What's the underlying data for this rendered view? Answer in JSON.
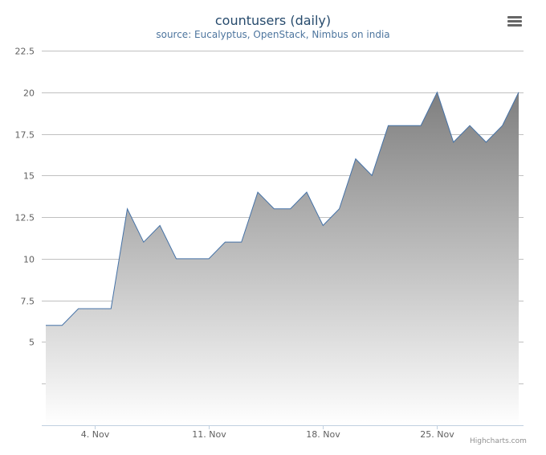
{
  "title": "countusers (daily)",
  "subtitle": "source: Eucalyptus, OpenStack, Nimbus on india",
  "menu": {
    "icon": "hamburger-menu-icon"
  },
  "credits": "Highcharts.com",
  "colors": {
    "line": "#4572a7",
    "area_top": "#7f7f7f",
    "area_bottom": "#ffffff",
    "grid": "#c0c0c0",
    "text": "#606060"
  },
  "chart_data": {
    "type": "area",
    "title": "countusers (daily)",
    "subtitle": "source: Eucalyptus, OpenStack, Nimbus on india",
    "x": [
      "2013-11-01",
      "2013-11-02",
      "2013-11-03",
      "2013-11-04",
      "2013-11-05",
      "2013-11-06",
      "2013-11-07",
      "2013-11-08",
      "2013-11-09",
      "2013-11-10",
      "2013-11-11",
      "2013-11-12",
      "2013-11-13",
      "2013-11-14",
      "2013-11-15",
      "2013-11-16",
      "2013-11-17",
      "2013-11-18",
      "2013-11-19",
      "2013-11-20",
      "2013-11-21",
      "2013-11-22",
      "2013-11-23",
      "2013-11-24",
      "2013-11-25",
      "2013-11-26",
      "2013-11-27",
      "2013-11-28",
      "2013-11-29",
      "2013-11-30"
    ],
    "series": [
      {
        "values": [
          6,
          6,
          7,
          7,
          7,
          13,
          11,
          12,
          10,
          10,
          10,
          11,
          11,
          14,
          13,
          13,
          14,
          12,
          13,
          16,
          15,
          18,
          18,
          18,
          20,
          17,
          18,
          17,
          18,
          20
        ]
      }
    ],
    "ylim": [
      0,
      22.5
    ],
    "y_ticks": [
      2.5,
      5,
      7.5,
      10,
      12.5,
      15,
      17.5,
      20,
      22.5
    ],
    "y_tick_labels": [
      "",
      "5",
      "7.5",
      "10",
      "12.5",
      "15",
      "17.5",
      "20",
      "22.5"
    ],
    "x_tick_dates": [
      "2013-11-04",
      "2013-11-11",
      "2013-11-18",
      "2013-11-25"
    ],
    "x_tick_labels": [
      "4. Nov",
      "11. Nov",
      "18. Nov",
      "25. Nov"
    ],
    "legend": "none",
    "grid": true
  }
}
